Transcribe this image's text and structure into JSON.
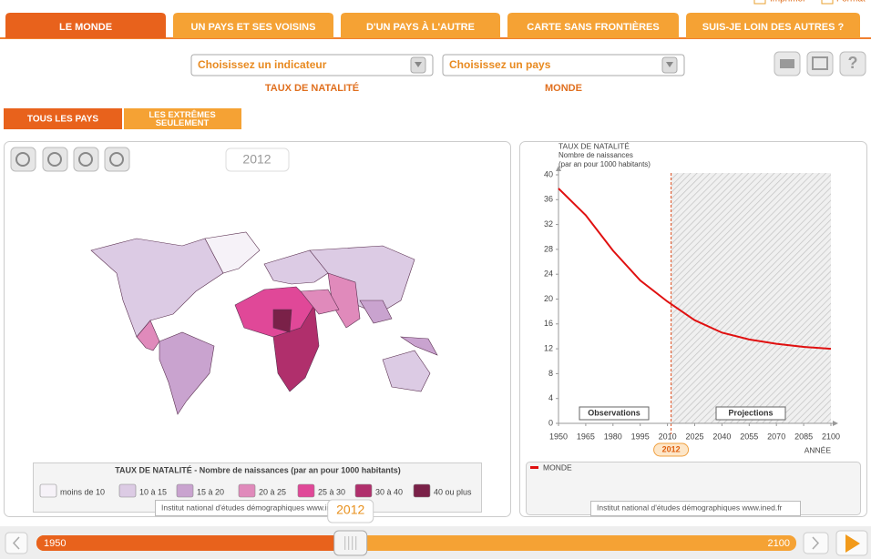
{
  "header_links": [
    "Imprimer",
    "Format"
  ],
  "tabs": [
    "LE MONDE",
    "UN PAYS ET SES VOISINS",
    "D'UN PAYS À L'AUTRE",
    "CARTE SANS FRONTIÈRES",
    "SUIS-JE LOIN DES AUTRES ?"
  ],
  "selectors": [
    {
      "placeholder": "Choisissez un indicateur",
      "caption": "TAUX DE NATALITÉ"
    },
    {
      "placeholder": "Choisissez un pays",
      "caption": "MONDE"
    }
  ],
  "view_buttons": [
    "TOUS LES PAYS",
    "LES EXTRÊMES SEULEMENT"
  ],
  "map": {
    "year_label": "2012",
    "legend": {
      "title": "TAUX DE NATALITÉ - Nombre de naissances (par an pour 1000 habitants)",
      "items": [
        {
          "label": "moins de 10",
          "color": "#f6f2f8"
        },
        {
          "label": "10 à 15",
          "color": "#dccbe4"
        },
        {
          "label": "15 à 20",
          "color": "#c9a3cf"
        },
        {
          "label": "20 à 25",
          "color": "#e08abb"
        },
        {
          "label": "25 à 30",
          "color": "#e04898"
        },
        {
          "label": "30 à 40",
          "color": "#b02f6c"
        },
        {
          "label": "40 ou plus",
          "color": "#7a2148"
        }
      ]
    },
    "credit": "Institut national d'études démographiques www.ined.fr"
  },
  "chart_data": {
    "type": "line",
    "y_label": [
      "TAUX DE NATALITÉ",
      "Nombre de naissances",
      "(par an pour 1000 habitants)"
    ],
    "x_label": "ANNÉE",
    "x": [
      1950,
      1965,
      1980,
      1995,
      2010,
      2025,
      2040,
      2055,
      2070,
      2085,
      2100
    ],
    "series": [
      {
        "name": "MONDE",
        "color": "#e01010",
        "values": [
          37.8,
          33.5,
          27.8,
          23,
          19.6,
          16.6,
          14.6,
          13.5,
          12.8,
          12.3,
          12
        ]
      }
    ],
    "xlim": [
      1950,
      2100
    ],
    "ylim": [
      0,
      40
    ],
    "xticks": [
      1950,
      1965,
      1980,
      1995,
      2010,
      2025,
      2040,
      2055,
      2070,
      2085,
      2100
    ],
    "yticks": [
      0,
      4,
      8,
      12,
      16,
      20,
      24,
      28,
      32,
      36,
      40
    ],
    "current_year": 2012,
    "annotations": [
      "Observations",
      "Projections"
    ],
    "credit": "Institut national d'études démographiques www.ined.fr"
  },
  "timeline": {
    "start": 1950,
    "end": 2100,
    "current": 2012
  }
}
